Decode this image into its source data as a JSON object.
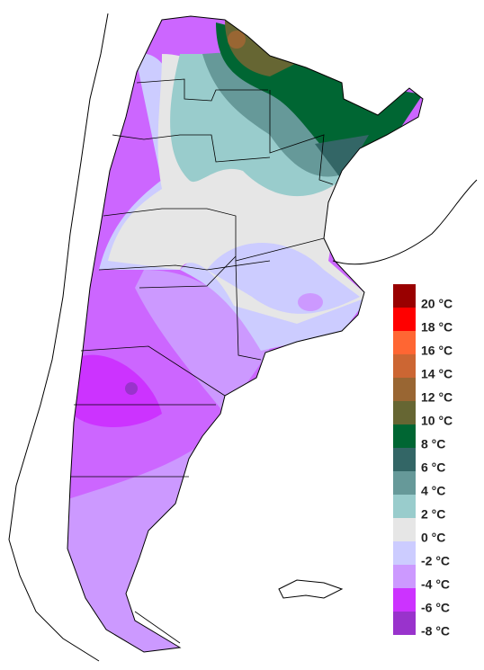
{
  "legend": {
    "items": [
      {
        "label": "20 °C",
        "color": "#990000"
      },
      {
        "label": "18 °C",
        "color": "#ff0000"
      },
      {
        "label": "16 °C",
        "color": "#ff6633"
      },
      {
        "label": "14 °C",
        "color": "#cc6633"
      },
      {
        "label": "12 °C",
        "color": "#996633"
      },
      {
        "label": "10 °C",
        "color": "#666633"
      },
      {
        "label": "8 °C",
        "color": "#006633"
      },
      {
        "label": "6 °C",
        "color": "#336666"
      },
      {
        "label": "4 °C",
        "color": "#669999"
      },
      {
        "label": "2 °C",
        "color": "#99cccc"
      },
      {
        "label": "0 °C",
        "color": "#e6e6e6"
      },
      {
        "label": "-2 °C",
        "color": "#ccccff"
      },
      {
        "label": "-4 °C",
        "color": "#cc99ff"
      },
      {
        "label": "-6 °C",
        "color": "#cc33ff"
      },
      {
        "label": "-8 °C",
        "color": "#9933cc"
      }
    ]
  }
}
